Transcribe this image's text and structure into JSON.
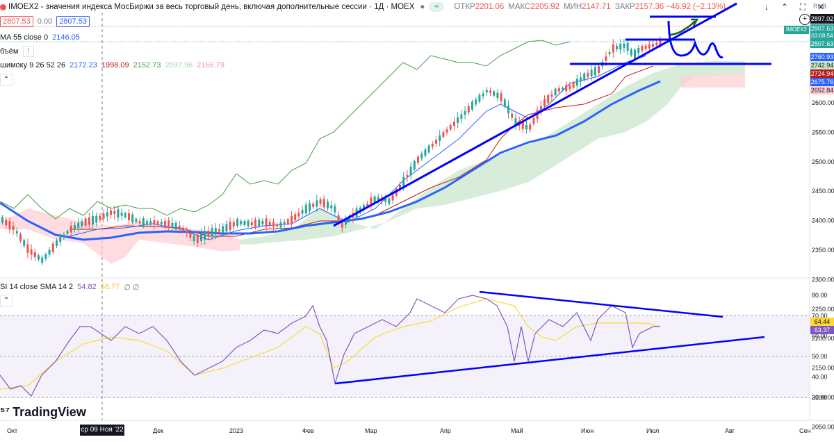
{
  "header": {
    "symbol": "IMOEX2 - значения индекса МосБиржи за весь торговый день, включая дополнительные сессии · 1Д · MOEX",
    "o_label": "ОТКР",
    "o_val": "2201.06",
    "h_label": "МАКС",
    "h_val": "2205.92",
    "l_label": "МИН",
    "l_val": "2147.71",
    "c_label": "ЗАКР",
    "c_val": "2157.36 −46.92 (−2.13%)",
    "bid": "2807.53",
    "qty": "0.00",
    "ask": "2807.53",
    "currency": "RUB"
  },
  "indicators": {
    "ma_label": "MA 55 close 0",
    "ma_val": "2146.05",
    "vol_label": "бъём",
    "ichi_label": "шимоку 9 26 52 26",
    "ichi_v1": "2172.23",
    "ichi_v2": "1998.09",
    "ichi_v3": "2152.73",
    "ichi_v4": "2097.96",
    "ichi_v5": "2166.79",
    "rsi_label": "SI 14 close SMA 14 2",
    "rsi_v1": "54.82",
    "rsi_v2": "56.77",
    "rsi_v3": "∅ ∅"
  },
  "badges": {
    "b1": "2897.02",
    "b2": "IMOEX2",
    "b2v": "2807.63",
    "b2t": "03:08:54",
    "b3": "2807.63",
    "b4": "2760.93",
    "b5": "2742.94",
    "b6": "2724.94",
    "b7": "2675.76",
    "b8": "2652.84",
    "r1": "64.44",
    "r2": "63.37"
  },
  "price_ticks": [
    "2600.00",
    "2550.00",
    "2500.00",
    "2450.00",
    "2400.00",
    "2350.00",
    "2300.00",
    "2250.00",
    "2200.00",
    "2150.00",
    "2100.00",
    "2050.00"
  ],
  "rsi_ticks": [
    "80.00",
    "70.00",
    "60.00",
    "50.00",
    "40.00",
    "30.00"
  ],
  "time_ticks": [
    "Окт",
    "Дек",
    "2023",
    "Фев",
    "Мар",
    "Апр",
    "Май",
    "Июн",
    "Июл",
    "Авг",
    "Сен"
  ],
  "crosshair_label": "ср 09 Ноя '22",
  "brand": "TradingView",
  "colors": {
    "up": "#26a69a",
    "down": "#ef5350",
    "ma": "#2962ff",
    "tenkan": "#2962ff",
    "kijun": "#b71c1c",
    "chikou": "#43a047",
    "draw": "#0000ff",
    "rsi": "#7e57c2",
    "rsi_ma": "#fdd835"
  },
  "chart_data": {
    "type": "line",
    "title": "IMOEX2 · 1Д · MOEX",
    "x_categories": [
      "Окт",
      "Дек",
      "2023",
      "Фев",
      "Мар",
      "Апр",
      "Май",
      "Июн",
      "Июл",
      "Авг",
      "Сен"
    ],
    "ylim": [
      2020,
      2900
    ],
    "series": [
      {
        "name": "IMOEX2",
        "x": [
          "Окт",
          "Дек",
          "2023",
          "Фев",
          "Мар",
          "Апр",
          "Май",
          "Июн",
          "Июл"
        ],
        "values": [
          2180,
          2205,
          2190,
          2200,
          2255,
          2450,
          2590,
          2700,
          2800
        ]
      },
      {
        "name": "MA 55 close 0",
        "x": [
          "Окт",
          "Дек",
          "2023",
          "Фев",
          "Мар",
          "Апр",
          "Май",
          "Июн",
          "Июл"
        ],
        "values": [
          2210,
          2160,
          2155,
          2185,
          2230,
          2350,
          2485,
          2570,
          2660
        ]
      }
    ],
    "rsi": {
      "ylim": [
        28,
        82
      ],
      "levels": [
        70,
        50,
        30
      ],
      "values": [
        40,
        60,
        56,
        63,
        46,
        75,
        47,
        74,
        60,
        62
      ]
    }
  }
}
